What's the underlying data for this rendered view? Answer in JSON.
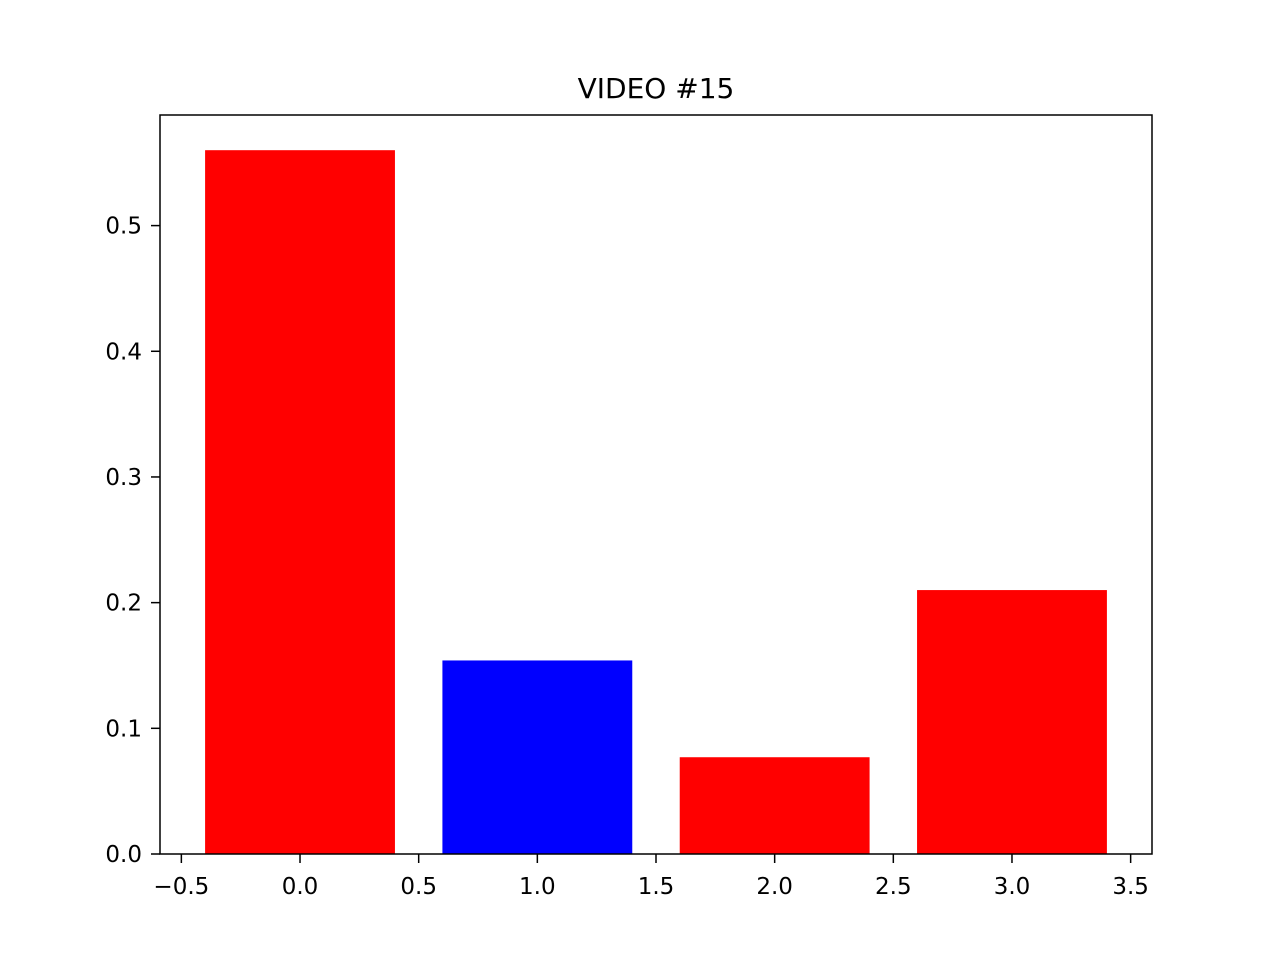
{
  "chart_data": {
    "type": "bar",
    "title": "VIDEO #15",
    "xlabel": "",
    "ylabel": "",
    "x": [
      0,
      1,
      2,
      3
    ],
    "values": [
      0.56,
      0.154,
      0.077,
      0.21
    ],
    "bar_width": 0.8,
    "colors": [
      "#ff0000",
      "#0000ff",
      "#ff0000",
      "#ff0000"
    ],
    "xlim": [
      -0.59,
      3.59
    ],
    "ylim": [
      0,
      0.588
    ],
    "xticks": [
      -0.5,
      0.0,
      0.5,
      1.0,
      1.5,
      2.0,
      2.5,
      3.0,
      3.5
    ],
    "xtick_labels": [
      "−0.5",
      "0.0",
      "0.5",
      "1.0",
      "1.5",
      "2.0",
      "2.5",
      "3.0",
      "3.5"
    ],
    "yticks": [
      0.0,
      0.1,
      0.2,
      0.3,
      0.4,
      0.5
    ],
    "ytick_labels": [
      "0.0",
      "0.1",
      "0.2",
      "0.3",
      "0.4",
      "0.5"
    ],
    "grid": false,
    "legend": "none"
  }
}
